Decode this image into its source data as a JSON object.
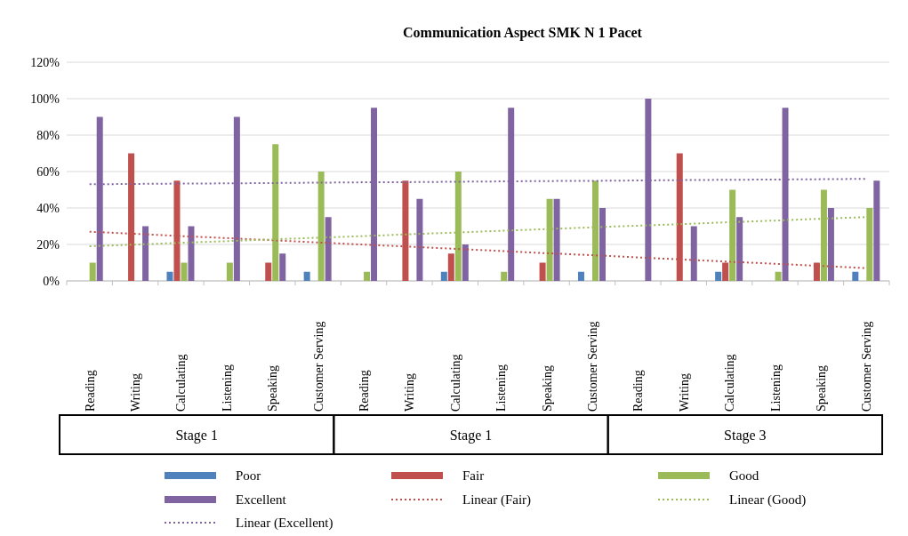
{
  "chart_data": {
    "type": "bar",
    "title": "Communication Aspect SMK N 1 Pacet",
    "categories": [
      "Reading",
      "Writing",
      "Calculating",
      "Listening",
      "Speaking",
      "Customer  Serving",
      "Reading",
      "Writing",
      "Calculating",
      "Listening",
      "Speaking",
      "Customer  Serving",
      "Reading",
      "Writing",
      "Calculating",
      "Listening",
      "Speaking",
      "Customer  Serving"
    ],
    "series": [
      {
        "name": "Poor",
        "color": "#4f81bd",
        "values": [
          0,
          0,
          5,
          0,
          0,
          5,
          0,
          0,
          5,
          0,
          0,
          5,
          0,
          0,
          5,
          0,
          0,
          5
        ]
      },
      {
        "name": "Fair",
        "color": "#c0504d",
        "values": [
          0,
          70,
          55,
          0,
          10,
          0,
          0,
          55,
          15,
          0,
          10,
          0,
          0,
          70,
          10,
          0,
          10,
          0
        ]
      },
      {
        "name": "Good",
        "color": "#9bbb59",
        "values": [
          10,
          0,
          10,
          10,
          75,
          60,
          5,
          0,
          60,
          5,
          45,
          55,
          0,
          0,
          50,
          5,
          50,
          40
        ]
      },
      {
        "name": "Excellent",
        "color": "#8064a2",
        "values": [
          90,
          30,
          30,
          90,
          15,
          35,
          95,
          45,
          20,
          95,
          45,
          40,
          100,
          30,
          35,
          95,
          40,
          55
        ]
      },
      {
        "name": "Linear (Fair)",
        "type": "line",
        "color": "#c0504d",
        "line_style": "dotted",
        "values": [
          27,
          25.8,
          24.6,
          23.5,
          22.3,
          21.1,
          19.9,
          18.8,
          17.6,
          16.4,
          15.2,
          14.1,
          12.9,
          11.7,
          10.5,
          9.4,
          8.2,
          7
        ]
      },
      {
        "name": "Linear (Good)",
        "type": "line",
        "color": "#9bbb59",
        "line_style": "dotted",
        "values": [
          19,
          19.9,
          20.9,
          21.8,
          22.8,
          23.7,
          24.6,
          25.6,
          26.5,
          27.5,
          28.4,
          29.4,
          30.3,
          31.2,
          32.2,
          33.1,
          34.1,
          35
        ]
      },
      {
        "name": "Linear (Excellent)",
        "type": "line",
        "color": "#8064a2",
        "line_style": "dotted",
        "values": [
          53,
          53.2,
          53.4,
          53.5,
          53.7,
          53.9,
          54.1,
          54.2,
          54.4,
          54.6,
          54.8,
          54.9,
          55.1,
          55.3,
          55.5,
          55.6,
          55.8,
          56
        ]
      }
    ],
    "annotations": [
      "Stage 1",
      "Stage 1",
      "Stage 3"
    ],
    "ylim": [
      0,
      120
    ],
    "yticks": [
      {
        "value": 0,
        "label": "0%"
      },
      {
        "value": 20,
        "label": "20%"
      },
      {
        "value": 40,
        "label": "40%"
      },
      {
        "value": 60,
        "label": "60%"
      },
      {
        "value": 80,
        "label": "80%"
      },
      {
        "value": 100,
        "label": "100%"
      },
      {
        "value": 120,
        "label": "120%"
      }
    ],
    "grid": "y",
    "legend": "bottom"
  }
}
